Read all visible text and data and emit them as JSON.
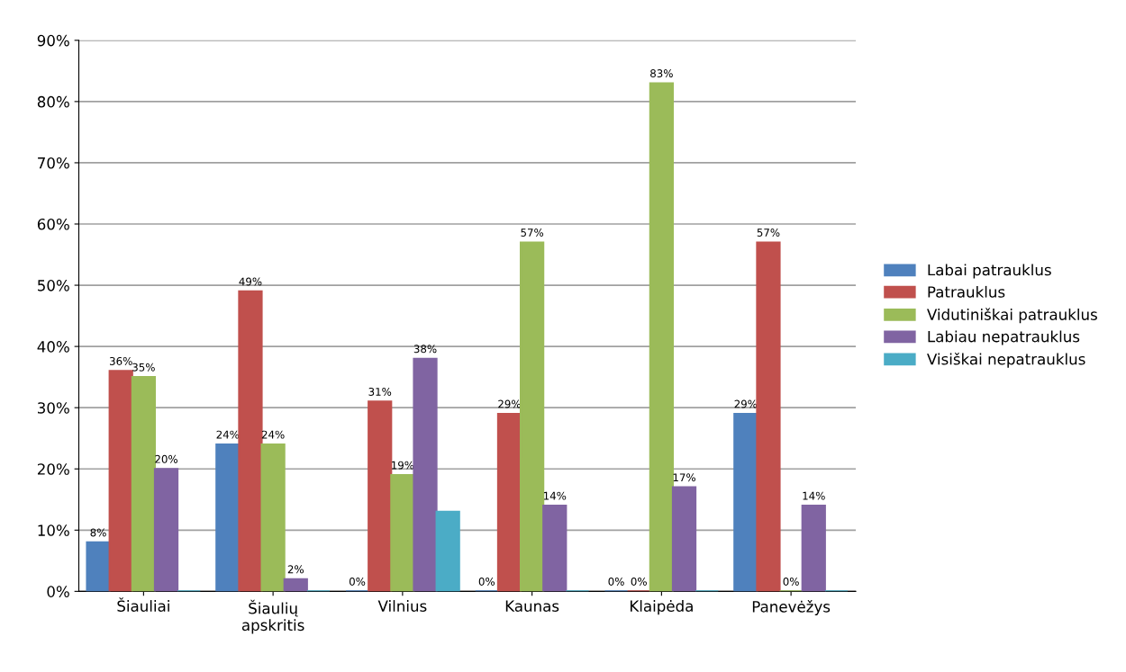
{
  "chart_data": {
    "type": "bar",
    "categories": [
      "Šiauliai",
      "Šiaulių\napskritis",
      "Vilnius",
      "Kaunas",
      "Klaipėda",
      "Panevėžys"
    ],
    "series": [
      {
        "name": "Labai patrauklus",
        "color": "#4f81bd",
        "values": [
          8,
          24,
          0,
          0,
          0,
          29
        ],
        "value_labels": [
          "8%",
          "24%",
          "0%",
          "0%",
          "0%",
          "29%"
        ]
      },
      {
        "name": "Patrauklus",
        "color": "#c0504d",
        "values": [
          36,
          49,
          31,
          29,
          0,
          57
        ],
        "value_labels": [
          "36%",
          "49%",
          "31%",
          "29%",
          "0%",
          "57%"
        ]
      },
      {
        "name": "Vidutiniškai patrauklus",
        "color": "#9bbb59",
        "values": [
          35,
          24,
          19,
          57,
          83,
          0
        ],
        "value_labels": [
          "35%",
          "24%",
          "19%",
          "57%",
          "83%",
          "0%"
        ]
      },
      {
        "name": "Labiau nepatrauklus",
        "color": "#8064a2",
        "values": [
          20,
          2,
          38,
          14,
          17,
          14
        ],
        "value_labels": [
          "20%",
          "2%",
          "38%",
          "14%",
          "17%",
          "14%"
        ]
      },
      {
        "name": "Visiškai nepatrauklus",
        "color": "#4bacc6",
        "values": [
          0,
          0,
          13,
          0,
          0,
          0
        ],
        "value_labels": [
          null,
          null,
          null,
          null,
          null,
          null
        ]
      }
    ],
    "ylim": [
      0,
      90
    ],
    "yticks": [
      {
        "value": 0,
        "label": "0%"
      },
      {
        "value": 10,
        "label": "10%"
      },
      {
        "value": 20,
        "label": "20%"
      },
      {
        "value": 30,
        "label": "30%"
      },
      {
        "value": 40,
        "label": "40%"
      },
      {
        "value": 50,
        "label": "50%"
      },
      {
        "value": 60,
        "label": "60%"
      },
      {
        "value": 70,
        "label": "70%"
      },
      {
        "value": 80,
        "label": "80%"
      },
      {
        "value": 90,
        "label": "90%"
      }
    ],
    "grid": "y",
    "legend": "right"
  }
}
